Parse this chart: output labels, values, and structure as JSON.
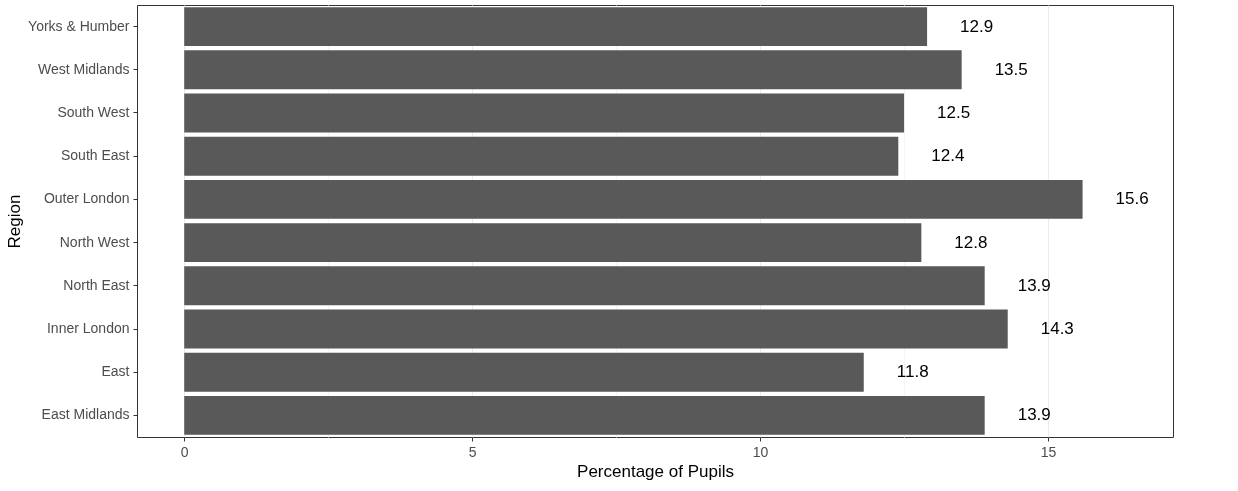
{
  "chart_data": {
    "type": "bar",
    "orientation": "horizontal",
    "xlabel": "Percentage of Pupils",
    "ylabel": "Region",
    "categories": [
      "Yorks & Humber",
      "West Midlands",
      "South West",
      "South East",
      "Outer London",
      "North West",
      "North East",
      "Inner London",
      "East",
      "East Midlands"
    ],
    "values": [
      12.9,
      13.5,
      12.5,
      12.4,
      15.6,
      12.8,
      13.9,
      14.3,
      11.8,
      13.9
    ],
    "color": "#595959",
    "data_labels": true,
    "grid": "x",
    "xlim": [
      -0.82,
      17.17
    ],
    "xticks": [
      0,
      {
        "value": 2.5,
        "label": null
      },
      5,
      {
        "value": 7.5,
        "label": null
      },
      10,
      {
        "value": 12.5,
        "label": null
      },
      15
    ]
  }
}
